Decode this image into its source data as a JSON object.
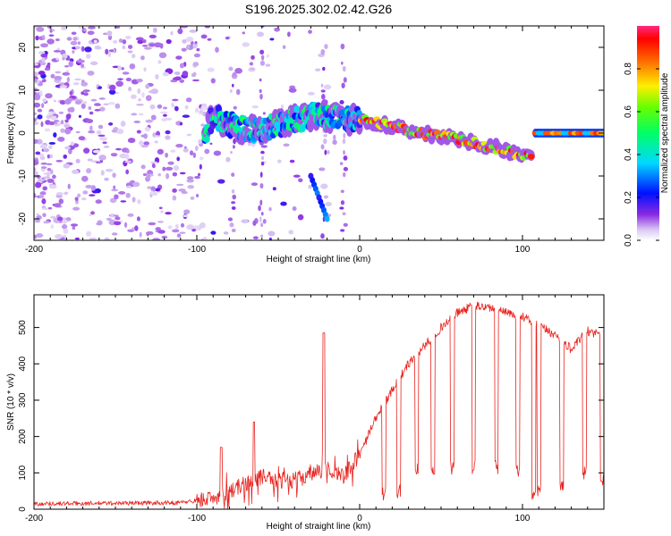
{
  "title": "S196.2025.302.02.42.G26",
  "chart_data": [
    {
      "type": "heatmap",
      "xlabel": "Height of straight line (km)",
      "ylabel": "Frequency (Hz)",
      "xlim": [
        -200,
        150
      ],
      "ylim": [
        -25,
        25
      ],
      "xticks": [
        -200,
        -100,
        0,
        100
      ],
      "yticks": [
        -20,
        -10,
        0,
        10,
        20
      ],
      "colorbar": {
        "label": "Normalized spectral amplitude",
        "range": [
          0,
          1
        ],
        "ticks": [
          0.0,
          0.2,
          0.4,
          0.6,
          0.8
        ],
        "tick_labels": [
          "0.0",
          "0.2",
          "0.4",
          "0.6",
          "0.8"
        ]
      },
      "features": [
        {
          "name": "noise",
          "x_range": [
            -200,
            -95
          ],
          "f_range": [
            -25,
            25
          ],
          "amplitude": 0.1
        },
        {
          "name": "track",
          "points": [
            [
              -95,
              0
            ],
            [
              -90,
              4
            ],
            [
              -80,
              2
            ],
            [
              -70,
              1
            ],
            [
              -60,
              0.5
            ],
            [
              -50,
              2
            ],
            [
              -40,
              3
            ],
            [
              -30,
              4
            ],
            [
              -20,
              4
            ],
            [
              -10,
              3.5
            ],
            [
              0,
              3
            ],
            [
              20,
              1.5
            ],
            [
              40,
              0
            ],
            [
              60,
              -1.5
            ],
            [
              80,
              -3
            ],
            [
              100,
              -5
            ],
            [
              105,
              -6
            ]
          ],
          "amplitude": 0.8
        },
        {
          "name": "spike",
          "points": [
            [
              -30,
              -10
            ],
            [
              -25,
              -15
            ],
            [
              -20,
              -20
            ]
          ],
          "amplitude": 0.3
        },
        {
          "name": "flat-line",
          "x_range": [
            108,
            150
          ],
          "frequency": 0,
          "amplitude": 0.9
        }
      ]
    },
    {
      "type": "line",
      "xlabel": "Height of straight line (km)",
      "ylabel": "SNR (10 * v/v)",
      "xlim": [
        -200,
        150
      ],
      "ylim": [
        0,
        590
      ],
      "xticks": [
        -200,
        -100,
        0,
        100
      ],
      "yticks": [
        0,
        100,
        200,
        300,
        400,
        500
      ],
      "color": "#e8221d",
      "baseline": [
        [
          -200,
          15
        ],
        [
          -110,
          18
        ],
        [
          -90,
          30
        ],
        [
          -80,
          50
        ],
        [
          -70,
          70
        ],
        [
          -60,
          90
        ],
        [
          -50,
          80
        ],
        [
          -40,
          80
        ],
        [
          -30,
          95
        ],
        [
          -20,
          110
        ],
        [
          -10,
          90
        ],
        [
          0,
          150
        ],
        [
          10,
          250
        ],
        [
          20,
          330
        ],
        [
          30,
          400
        ],
        [
          40,
          450
        ],
        [
          50,
          500
        ],
        [
          60,
          540
        ],
        [
          70,
          560
        ],
        [
          80,
          555
        ],
        [
          90,
          540
        ],
        [
          100,
          530
        ],
        [
          110,
          505
        ],
        [
          120,
          480
        ],
        [
          130,
          440
        ],
        [
          140,
          490
        ],
        [
          150,
          480
        ]
      ],
      "peaks": [
        {
          "x": -22,
          "y": 485
        },
        {
          "x": -65,
          "y": 240
        },
        {
          "x": -85,
          "y": 170
        }
      ],
      "dips": [
        {
          "x": 15,
          "y": 20
        },
        {
          "x": 24,
          "y": 30
        },
        {
          "x": 35,
          "y": 90
        },
        {
          "x": 45,
          "y": 90
        },
        {
          "x": 57,
          "y": 95
        },
        {
          "x": 70,
          "y": 95
        },
        {
          "x": 84,
          "y": 95
        },
        {
          "x": 97,
          "y": 90
        },
        {
          "x": 107,
          "y": 20
        },
        {
          "x": 110,
          "y": 30
        },
        {
          "x": 124,
          "y": 45
        },
        {
          "x": 138,
          "y": 80
        },
        {
          "x": 149,
          "y": 60
        }
      ]
    }
  ]
}
